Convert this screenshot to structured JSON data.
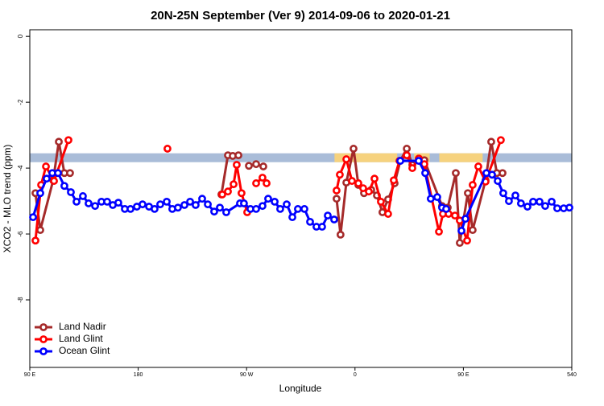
{
  "chart_data": {
    "type": "line",
    "title": "20N-25N September (Ver 9)   2014-09-06 to 2020-01-21",
    "x_label": "Longitude",
    "y_label": "XCO2 - MLO trend (ppm)",
    "xlim": [
      90,
      540
    ],
    "ylim": [
      -10.05,
      0.2
    ],
    "xticks": [
      {
        "value": 90,
        "label": "90 E"
      },
      180,
      {
        "value": 270,
        "label": "90 W"
      },
      {
        "value": 360,
        "label": "0"
      },
      {
        "value": 450,
        "label": "90 E"
      },
      540
    ],
    "yticks": [
      0,
      -2,
      -4,
      -6,
      -8
    ],
    "legend": "bottomleft",
    "band": {
      "y": [
        -3.82,
        -3.55
      ],
      "color": "#a9bcd8",
      "highlight_color": "#f6d27e",
      "highlight_x": [
        [
          343,
          395
        ],
        [
          409,
          422
        ],
        [
          430,
          466
        ]
      ]
    },
    "series": [
      {
        "name": "Land Nadir",
        "color": "#a52a2a",
        "x": [
          94.7,
          98.7,
          109.4,
          114.1,
          118.7,
          123.4,
          null,
          249.1,
          254.5,
          258.5,
          263.2,
          null,
          271.9,
          277.9,
          283.9,
          null,
          344.7,
          348.0,
          352.8,
          358.8,
          362.8,
          367.5,
          373.5,
          378.2,
          382.8,
          387.5,
          392.9,
          397.6,
          403.0,
          407.6,
          413.0,
          417.6,
          432.3,
          437.0,
          443.7,
          447.0,
          453.7,
          457.7,
          468.4,
          473.1,
          477.8,
          482.5
        ],
        "values": [
          -4.76,
          -5.88,
          -4.37,
          -3.2,
          -4.15,
          -4.15,
          null,
          -4.8,
          -3.61,
          -3.63,
          -3.61,
          null,
          -3.93,
          -3.88,
          -3.95,
          null,
          -4.93,
          -6.02,
          -4.44,
          -3.41,
          -4.51,
          -4.76,
          -4.66,
          -4.83,
          -5.34,
          -4.95,
          -4.46,
          -3.78,
          -3.41,
          -3.9,
          -3.71,
          -3.76,
          -5.15,
          -5.2,
          -4.15,
          -6.27,
          -4.76,
          -5.88,
          -4.37,
          -3.2,
          -4.15,
          -4.15
        ]
      },
      {
        "name": "Land Glint",
        "color": "#ff0000",
        "x": [
          94.7,
          99.4,
          103.4,
          110.1,
          122.1,
          null,
          204.3,
          null,
          249.8,
          254.5,
          259.2,
          261.8,
          265.8,
          270.5,
          null,
          277.9,
          283.2,
          286.6,
          null,
          344.7,
          347.4,
          352.8,
          357.5,
          362.8,
          366.8,
          371.5,
          376.2,
          381.5,
          387.5,
          392.2,
          396.9,
          403.0,
          407.6,
          413.0,
          417.6,
          429.7,
          433.0,
          437.7,
          443.0,
          447.0,
          453.1,
          457.7,
          462.4,
          468.4,
          481.1
        ],
        "values": [
          -6.2,
          -4.51,
          -3.95,
          -4.39,
          -3.15,
          null,
          -3.41,
          null,
          -4.8,
          -4.71,
          -4.49,
          -3.9,
          -4.76,
          -5.34,
          null,
          -4.46,
          -4.29,
          -4.46,
          null,
          -4.68,
          -4.2,
          -3.73,
          -4.39,
          -4.46,
          -4.61,
          -4.71,
          -4.32,
          -5.02,
          -5.39,
          -4.37,
          -3.78,
          -3.61,
          -4.0,
          -3.71,
          -3.88,
          -5.93,
          -5.39,
          -5.39,
          -5.44,
          -5.59,
          -6.2,
          -4.51,
          -3.95,
          -4.41,
          -3.15
        ]
      },
      {
        "name": "Ocean Glint",
        "color": "#0000ff",
        "x": [
          92.7,
          98.7,
          104.0,
          108.7,
          113.4,
          118.7,
          124.1,
          128.8,
          134.1,
          138.8,
          144.2,
          149.5,
          154.2,
          158.9,
          163.5,
          168.9,
          173.6,
          178.9,
          183.6,
          189.0,
          193.6,
          198.3,
          203.7,
          208.3,
          213.0,
          218.4,
          223.1,
          227.7,
          233.1,
          237.8,
          243.1,
          247.8,
          253.1,
          264.5,
          267.8,
          273.2,
          277.9,
          283.2,
          287.9,
          293.3,
          297.9,
          303.3,
          308.0,
          312.6,
          318.0,
          322.7,
          328.0,
          332.7,
          337.4,
          342.7,
          null,
          397.6,
          412.9,
          418.3,
          422.9,
          428.3,
          432.3,
          435.7,
          null,
          448.4,
          451.7,
          469.1,
          473.8,
          478.5,
          483.1,
          487.8,
          493.2,
          497.8,
          503.2,
          507.9,
          513.2,
          517.9,
          523.3,
          527.9,
          533.3,
          538.0
        ],
        "values": [
          -5.49,
          -4.76,
          -4.32,
          -4.15,
          -4.15,
          -4.54,
          -4.73,
          -5.02,
          -4.85,
          -5.07,
          -5.15,
          -5.02,
          -5.02,
          -5.12,
          -5.05,
          -5.24,
          -5.24,
          -5.17,
          -5.1,
          -5.17,
          -5.24,
          -5.1,
          -5.02,
          -5.24,
          -5.2,
          -5.12,
          -5.02,
          -5.12,
          -4.93,
          -5.1,
          -5.32,
          -5.2,
          -5.34,
          -5.07,
          -5.07,
          -5.24,
          -5.24,
          -5.15,
          -4.93,
          -5.02,
          -5.24,
          -5.1,
          -5.49,
          -5.24,
          -5.24,
          -5.63,
          -5.78,
          -5.78,
          -5.44,
          -5.56,
          null,
          -3.78,
          -3.78,
          -4.15,
          -4.93,
          -4.88,
          -5.2,
          -5.24,
          null,
          -5.9,
          -5.54,
          -4.15,
          -4.2,
          -4.39,
          -4.76,
          -5.0,
          -4.83,
          -5.07,
          -5.17,
          -5.02,
          -5.02,
          -5.15,
          -5.02,
          -5.22,
          -5.22,
          -5.2
        ]
      }
    ]
  }
}
